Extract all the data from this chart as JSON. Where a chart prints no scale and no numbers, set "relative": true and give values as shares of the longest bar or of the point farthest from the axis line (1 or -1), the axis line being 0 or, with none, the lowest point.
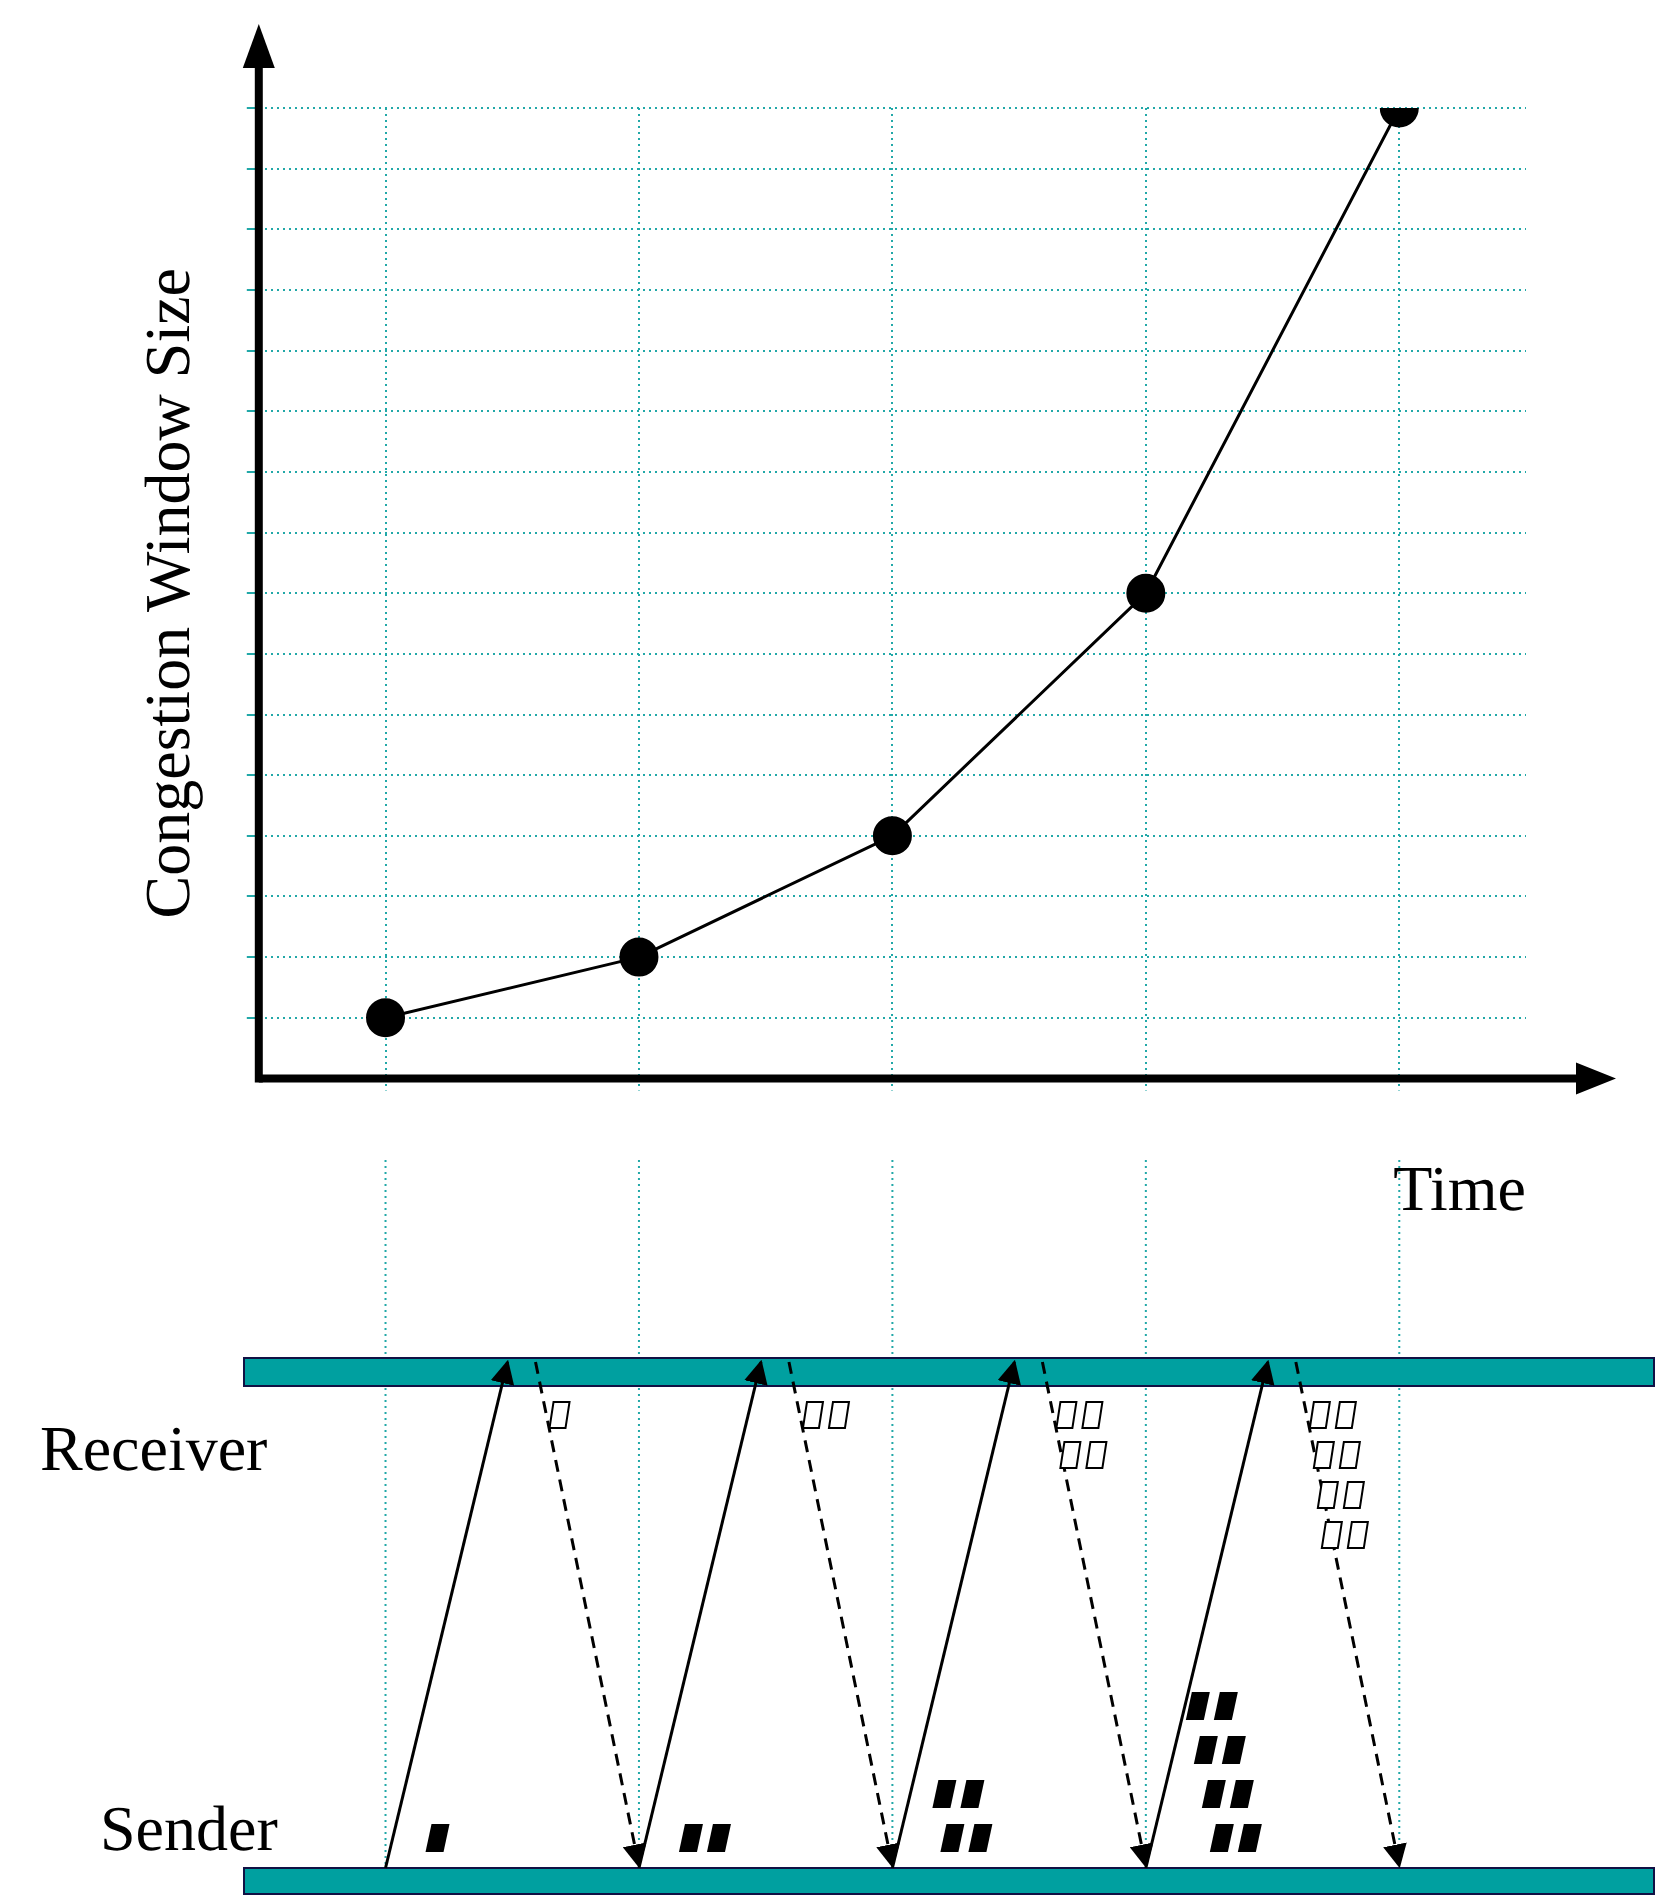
{
  "chart_data": {
    "type": "line",
    "xlabel": "Time",
    "ylabel": "Congestion Window Size",
    "categories": [
      null,
      null,
      null,
      null,
      null
    ],
    "relative": true,
    "series": [
      {
        "color": "#000000",
        "values": [
          0.0625,
          0.125,
          0.25,
          0.5,
          1
        ]
      }
    ],
    "marker": "circle",
    "grid": true,
    "legend": false,
    "annotations": [
      "Receiver",
      "Sender"
    ]
  }
}
